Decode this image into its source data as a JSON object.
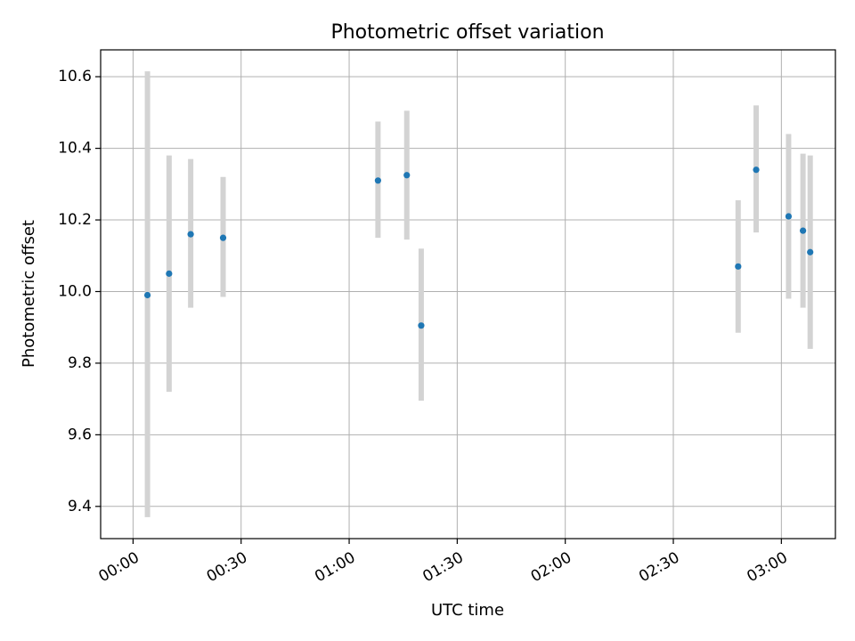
{
  "chart_data": {
    "type": "scatter",
    "title": "Photometric offset variation",
    "xlabel": "UTC time",
    "ylabel": "Photometric offset",
    "x_axis_type": "time",
    "xlim": [
      "23:51",
      "03:15"
    ],
    "ylim": [
      9.31,
      10.675
    ],
    "x_ticks": [
      "00:00",
      "00:30",
      "01:00",
      "01:30",
      "02:00",
      "02:30",
      "03:00"
    ],
    "y_ticks": [
      "9.4",
      "9.6",
      "9.8",
      "10.0",
      "10.2",
      "10.4",
      "10.6"
    ],
    "grid": true,
    "legend": "none",
    "marker_color": "#1f77b4",
    "errorbar_color": "#d3d3d3",
    "points": [
      {
        "x": "00:04",
        "y": 9.99,
        "y_low": 9.37,
        "y_high": 10.615
      },
      {
        "x": "00:10",
        "y": 10.05,
        "y_low": 9.72,
        "y_high": 10.38
      },
      {
        "x": "00:16",
        "y": 10.16,
        "y_low": 9.955,
        "y_high": 10.37
      },
      {
        "x": "00:25",
        "y": 10.15,
        "y_low": 9.985,
        "y_high": 10.32
      },
      {
        "x": "01:08",
        "y": 10.31,
        "y_low": 10.15,
        "y_high": 10.475
      },
      {
        "x": "01:16",
        "y": 10.325,
        "y_low": 10.145,
        "y_high": 10.505
      },
      {
        "x": "01:20",
        "y": 9.905,
        "y_low": 9.695,
        "y_high": 10.12
      },
      {
        "x": "02:48",
        "y": 10.07,
        "y_low": 9.885,
        "y_high": 10.255
      },
      {
        "x": "02:53",
        "y": 10.34,
        "y_low": 10.165,
        "y_high": 10.52
      },
      {
        "x": "03:02",
        "y": 10.21,
        "y_low": 9.98,
        "y_high": 10.44
      },
      {
        "x": "03:06",
        "y": 10.17,
        "y_low": 9.955,
        "y_high": 10.385
      },
      {
        "x": "03:08",
        "y": 10.11,
        "y_low": 9.84,
        "y_high": 10.38
      }
    ]
  }
}
